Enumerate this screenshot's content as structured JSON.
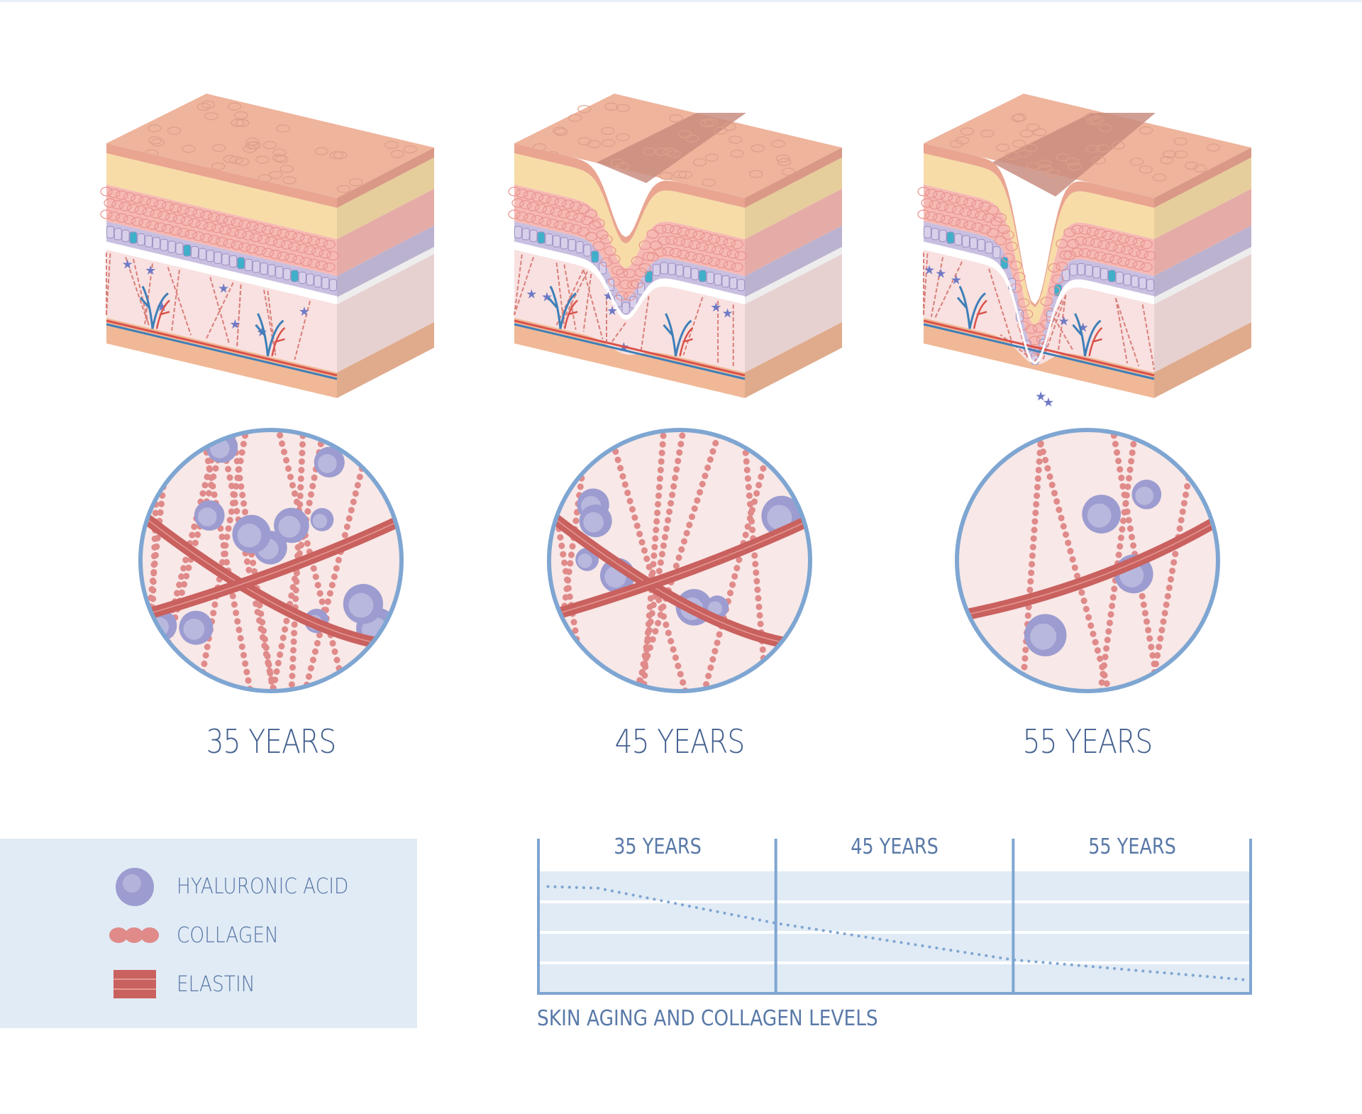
{
  "stages": [
    {
      "label": "35 YEARS",
      "wrinkle": 0,
      "hyaluronic": 12,
      "collagen": 12,
      "elastin": 2
    },
    {
      "label": "45 YEARS",
      "wrinkle": 0.5,
      "hyaluronic": 8,
      "collagen": 9,
      "elastin": 2
    },
    {
      "label": "55 YEARS",
      "wrinkle": 1,
      "hyaluronic": 5,
      "collagen": 5,
      "elastin": 1
    }
  ],
  "legend": {
    "items": [
      {
        "label": "HYALURONIC ACID",
        "icon": "hyaluronic-sphere-icon"
      },
      {
        "label": "COLLAGEN",
        "icon": "collagen-beads-icon"
      },
      {
        "label": "ELASTIN",
        "icon": "elastin-band-icon"
      }
    ]
  },
  "chart_data": {
    "type": "line",
    "title": "SKIN AGING AND COLLAGEN LEVELS",
    "categories": [
      "35 YEARS",
      "45 YEARS",
      "55 YEARS"
    ],
    "grid": true,
    "line_style": "dotted",
    "ylim": [
      0,
      4
    ],
    "x": [
      0.04,
      0.25,
      1.0,
      2.0,
      2.97
    ],
    "values": [
      3.5,
      3.45,
      2.3,
      1.1,
      0.45
    ]
  },
  "colors": {
    "label_blue": "#43608f",
    "frame_blue": "#7fa6d2",
    "panel_bg": "#e1ebf5",
    "collagen": "#e08a8a",
    "elastin": "#c9615f",
    "hyaluronic": "#9c9cd0",
    "dermis": "#f8e1e0"
  }
}
